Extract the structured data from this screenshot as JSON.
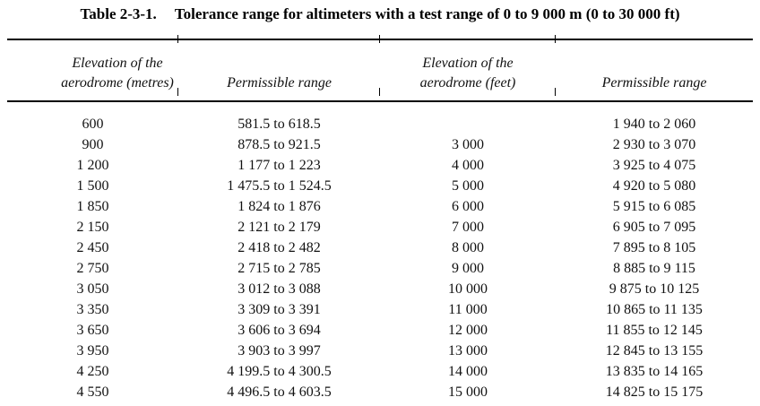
{
  "colors": {
    "text": "#111111",
    "rule": "#000000",
    "background": "#ffffff"
  },
  "table": {
    "caption_label": "Table 2-3-1.",
    "caption_text": "Tolerance range for altimeters with a test range of 0 to 9 000 m (0 to 30 000 ft)",
    "columns": [
      {
        "header_line1": "Elevation of the",
        "header_line2": "aerodrome (metres)"
      },
      {
        "header": "Permissible range"
      },
      {
        "header_line1": "Elevation of the",
        "header_line2": "aerodrome (feet)"
      },
      {
        "header": "Permissible range"
      }
    ],
    "rows": [
      [
        "600",
        "581.5 to 618.5",
        "",
        "1 940 to 2 060"
      ],
      [
        "900",
        "878.5 to 921.5",
        "3 000",
        "2 930 to 3 070"
      ],
      [
        "1 200",
        "1 177 to 1 223",
        "4 000",
        "3 925 to 4 075"
      ],
      [
        "1 500",
        "1 475.5 to 1 524.5",
        "5 000",
        "4 920 to 5 080"
      ],
      [
        "1 850",
        "1 824 to 1 876",
        "6 000",
        "5 915 to 6 085"
      ],
      [
        "2 150",
        "2 121 to 2 179",
        "7 000",
        "6 905 to 7 095"
      ],
      [
        "2 450",
        "2 418 to 2 482",
        "8 000",
        "7 895 to 8 105"
      ],
      [
        "2 750",
        "2 715 to 2 785",
        "9 000",
        "8 885 to 9 115"
      ],
      [
        "3 050",
        "3 012 to 3 088",
        "10 000",
        "9 875 to 10 125"
      ],
      [
        "3 350",
        "3 309 to 3 391",
        "11 000",
        "10 865 to 11 135"
      ],
      [
        "3 650",
        "3 606 to 3 694",
        "12 000",
        "11 855 to 12 145"
      ],
      [
        "3 950",
        "3 903 to 3 997",
        "13 000",
        "12 845 to 13 155"
      ],
      [
        "4 250",
        "4 199.5 to 4 300.5",
        "14 000",
        "13 835 to 14 165"
      ],
      [
        "4 550",
        "4 496.5 to 4 603.5",
        "15 000",
        "14 825 to 15 175"
      ]
    ]
  }
}
